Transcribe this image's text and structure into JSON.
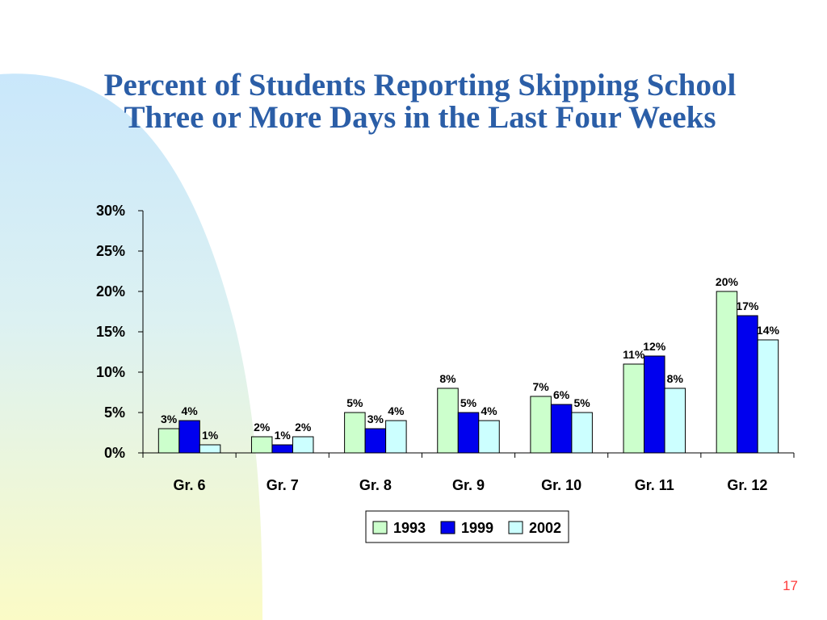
{
  "slide": {
    "title_line1": "Percent of Students Reporting Skipping School",
    "title_line2": "Three or More Days in the Last Four Weeks",
    "page_number": "17"
  },
  "colors": {
    "title": "#2b5ea7",
    "page_number": "#ff3b3b",
    "series_1993": "#ccffcc",
    "series_1999": "#0000ee",
    "series_2002": "#ccffff"
  },
  "chart_data": {
    "type": "bar",
    "categories": [
      "Gr. 6",
      "Gr. 7",
      "Gr. 8",
      "Gr. 9",
      "Gr. 10",
      "Gr. 11",
      "Gr. 12"
    ],
    "series": [
      {
        "name": "1993",
        "values": [
          3,
          2,
          5,
          8,
          7,
          11,
          20
        ],
        "labels": [
          "3%",
          "2%",
          "5%",
          "8%",
          "7%",
          "11%",
          "20%"
        ],
        "color": "#ccffcc"
      },
      {
        "name": "1999",
        "values": [
          4,
          1,
          3,
          5,
          6,
          12,
          17
        ],
        "labels": [
          "4%",
          "1%",
          "3%",
          "5%",
          "6%",
          "12%",
          "17%"
        ],
        "color": "#0000ee"
      },
      {
        "name": "2002",
        "values": [
          1,
          2,
          4,
          4,
          5,
          8,
          14
        ],
        "labels": [
          "1%",
          "2%",
          "4%",
          "4%",
          "5%",
          "8%",
          "14%"
        ],
        "color": "#ccffff"
      }
    ],
    "ylim": [
      0,
      30
    ],
    "yticks": [
      "0%",
      "5%",
      "10%",
      "15%",
      "20%",
      "25%",
      "30%"
    ],
    "title": "",
    "xlabel": "",
    "ylabel": "",
    "grid": false,
    "legend": "bottom-center"
  }
}
